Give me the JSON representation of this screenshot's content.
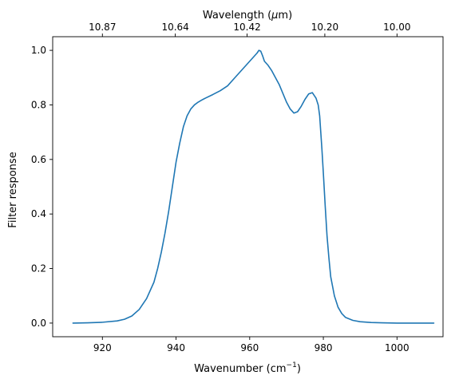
{
  "chart_data": {
    "type": "line",
    "xlabel": "Wavenumber (cm",
    "xlabel_sup": "−1",
    "xlabel_suffix": ")",
    "ylabel": "Filter response",
    "top_axis_label_prefix": "Wavelength (",
    "top_axis_label_mu": "μ",
    "top_axis_label_suffix": "m)",
    "xlim": [
      906.5,
      1012.5
    ],
    "ylim": [
      -0.05,
      1.05
    ],
    "x_ticks": [
      920,
      940,
      960,
      980,
      1000
    ],
    "x_tick_labels": [
      "920",
      "940",
      "960",
      "980",
      "1000"
    ],
    "y_ticks": [
      0.0,
      0.2,
      0.4,
      0.6,
      0.8,
      1.0
    ],
    "y_tick_labels": [
      "0.0",
      "0.2",
      "0.4",
      "0.6",
      "0.8",
      "1.0"
    ],
    "top_ticks_wavenumber": [
      920.0,
      939.8,
      959.3,
      980.4,
      1000.0
    ],
    "top_tick_labels": [
      "10.87",
      "10.64",
      "10.42",
      "10.20",
      "10.00"
    ],
    "color": "#1f77b4",
    "grid": false,
    "series": [
      {
        "x": [
          912,
          916,
          920,
          924,
          926,
          928,
          930,
          932,
          934,
          935,
          936,
          937,
          938,
          939,
          940,
          941,
          942,
          943,
          944,
          945,
          946,
          947,
          948,
          950,
          952,
          954,
          956,
          958,
          960,
          961,
          962,
          962.5,
          963,
          963.5,
          964,
          965,
          966,
          968,
          970,
          971,
          972,
          973,
          974,
          975,
          976,
          977,
          978,
          978.6,
          979,
          979.3,
          979.6,
          980,
          980.5,
          981,
          981.5,
          982,
          983,
          984,
          985,
          986,
          988,
          990,
          993,
          996,
          1000,
          1005,
          1010
        ],
        "y": [
          0.0,
          0.001,
          0.003,
          0.008,
          0.014,
          0.026,
          0.05,
          0.09,
          0.15,
          0.2,
          0.26,
          0.33,
          0.41,
          0.5,
          0.59,
          0.66,
          0.72,
          0.76,
          0.785,
          0.8,
          0.81,
          0.818,
          0.825,
          0.838,
          0.852,
          0.87,
          0.9,
          0.93,
          0.96,
          0.975,
          0.99,
          1.0,
          0.997,
          0.98,
          0.96,
          0.945,
          0.925,
          0.875,
          0.81,
          0.785,
          0.77,
          0.775,
          0.795,
          0.82,
          0.84,
          0.845,
          0.825,
          0.8,
          0.76,
          0.7,
          0.64,
          0.55,
          0.43,
          0.32,
          0.24,
          0.17,
          0.1,
          0.058,
          0.035,
          0.021,
          0.01,
          0.005,
          0.002,
          0.001,
          0.0,
          0.0,
          0.0
        ]
      }
    ]
  }
}
